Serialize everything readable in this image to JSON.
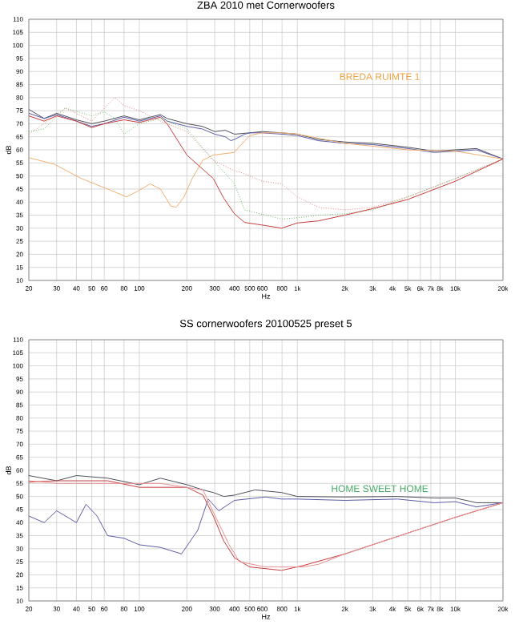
{
  "chart_data": [
    {
      "type": "line",
      "title": "ZBA 2010 met Cornerwoofers",
      "xlabel": "Hz",
      "ylabel": "dB",
      "log": "x",
      "grid": true,
      "marker": "none",
      "xlim": [
        20,
        20000
      ],
      "ylim": [
        10,
        110
      ],
      "xticks": [
        20,
        30,
        40,
        50,
        60,
        80,
        100,
        200,
        300,
        400,
        500,
        600,
        800,
        {
          "value": 1000,
          "label": "1k"
        },
        {
          "value": 2000,
          "label": "2k"
        },
        {
          "value": 3000,
          "label": "3k"
        },
        {
          "value": 4000,
          "label": "4k"
        },
        {
          "value": 5000,
          "label": "5k"
        },
        {
          "value": 6000,
          "label": "6k"
        },
        {
          "value": 7000,
          "label": "7k"
        },
        {
          "value": 8000,
          "label": "8k"
        },
        {
          "value": 10000,
          "label": "10k"
        },
        {
          "value": 20000,
          "label": "20k"
        }
      ],
      "yticks": [
        10,
        15,
        20,
        25,
        30,
        35,
        40,
        45,
        50,
        55,
        60,
        65,
        70,
        75,
        80,
        85,
        90,
        95,
        100,
        105,
        110
      ],
      "annotations": [
        "BREDA RUIMTE 1"
      ],
      "series": [
        {
          "color": "#4d4d5a",
          "line_style": "solid",
          "x": [
            20,
            25,
            30,
            40,
            50,
            60,
            80,
            100,
            136,
            150,
            200,
            250,
            300,
            350,
            400,
            500,
            600,
            800,
            1000,
            1360,
            2000,
            3000,
            5000,
            7350,
            10000,
            13600,
            20000
          ],
          "values": [
            75.5,
            72,
            74,
            71.5,
            70,
            71,
            73,
            71.5,
            73.5,
            72,
            70,
            69,
            67,
            67.5,
            66,
            66.5,
            67,
            66.5,
            66,
            64,
            63,
            62.5,
            61,
            59.5,
            60,
            60.5,
            56.5
          ]
        },
        {
          "color": "#5a5aa8",
          "line_style": "solid",
          "x": [
            20,
            25,
            30,
            40,
            50,
            60,
            80,
            100,
            136,
            150,
            200,
            250,
            300,
            350,
            380,
            400,
            431,
            464,
            500,
            600,
            800,
            1000,
            1360,
            2000,
            3000,
            5000,
            7350,
            10000,
            13600,
            20000
          ],
          "values": [
            74,
            72,
            73.5,
            71,
            69,
            70,
            72.5,
            71,
            73,
            71,
            69,
            68,
            66,
            65,
            63.5,
            64,
            65,
            66,
            66.5,
            66.5,
            66,
            65.5,
            63.5,
            62.5,
            62,
            60.5,
            59,
            59.5,
            60,
            56.5
          ]
        },
        {
          "color": "#f0b070",
          "line_style": "solid",
          "x": [
            20,
            29,
            43,
            63,
            83,
            100,
            117,
            136,
            158,
            171,
            192,
            216,
            252,
            293,
            398,
            500,
            600,
            800,
            1000,
            2000,
            5000,
            10000,
            20000
          ],
          "values": [
            57,
            54.5,
            49,
            45,
            42,
            44.5,
            47,
            45,
            38.5,
            38,
            42,
            49,
            56,
            58,
            59,
            65.5,
            66.5,
            66.5,
            66,
            62.5,
            60,
            59.5,
            56.5
          ]
        },
        {
          "color": "#66bb66",
          "line_style": "dotted",
          "x": [
            20,
            25,
            34,
            50,
            60,
            70,
            80,
            100,
            136,
            200,
            294,
            400,
            464,
            631,
            796,
            1000,
            1360,
            2000,
            3000,
            5000,
            10000,
            20000
          ],
          "values": [
            67,
            68,
            76,
            73,
            74.5,
            72,
            66,
            70,
            72,
            68,
            56,
            47,
            37,
            35,
            33.5,
            34,
            35,
            35.5,
            37,
            42,
            49,
            56.5
          ]
        },
        {
          "color": "#e08080",
          "line_style": "dotted",
          "x": [
            20,
            25,
            34,
            50,
            70,
            80,
            100,
            136,
            200,
            294,
            400,
            431,
            500,
            600,
            796,
            1000,
            1360,
            2000,
            3000,
            5000,
            10000,
            20000
          ],
          "values": [
            66,
            70,
            76,
            71,
            80,
            77,
            75,
            71,
            67,
            56,
            52,
            51.5,
            50,
            48,
            47,
            42,
            38,
            37,
            38,
            42,
            49,
            56.5
          ]
        },
        {
          "color": "#c83c3c",
          "line_style": "solid",
          "x": [
            20,
            25,
            30,
            40,
            50,
            60,
            80,
            100,
            136,
            150,
            200,
            294,
            342,
            400,
            464,
            631,
            796,
            1000,
            1360,
            2000,
            3000,
            5000,
            10000,
            20000
          ],
          "values": [
            73,
            71,
            73,
            71,
            68.5,
            70,
            71.5,
            70.5,
            72.5,
            70,
            58,
            49,
            41.5,
            35.5,
            32.2,
            31,
            30,
            32,
            32.8,
            35,
            37.5,
            41,
            48,
            56.5
          ]
        }
      ]
    },
    {
      "type": "line",
      "title": "SS cornerwoofers 20100525 preset 5",
      "xlabel": "Hz",
      "ylabel": "dB",
      "log": "x",
      "grid": true,
      "marker": "none",
      "xlim": [
        20,
        20000
      ],
      "ylim": [
        10,
        110
      ],
      "xticks": [
        20,
        30,
        40,
        50,
        60,
        80,
        100,
        200,
        300,
        400,
        500,
        600,
        800,
        {
          "value": 1000,
          "label": "1k"
        },
        {
          "value": 2000,
          "label": "2k"
        },
        {
          "value": 3000,
          "label": "3k"
        },
        {
          "value": 4000,
          "label": "4k"
        },
        {
          "value": 5000,
          "label": "5k"
        },
        {
          "value": 6000,
          "label": "6k"
        },
        {
          "value": 7000,
          "label": "7k"
        },
        {
          "value": 8000,
          "label": "8k"
        },
        {
          "value": 10000,
          "label": "10k"
        },
        {
          "value": 20000,
          "label": "20k"
        }
      ],
      "yticks": [
        10,
        15,
        20,
        25,
        30,
        35,
        40,
        45,
        50,
        55,
        60,
        65,
        70,
        75,
        80,
        85,
        90,
        95,
        100,
        105,
        110
      ],
      "annotations": [
        "HOME SWEET HOME"
      ],
      "series": [
        {
          "color": "#4d4d5a",
          "line_style": "solid",
          "x": [
            20,
            30,
            40,
            63,
            100,
            136,
            200,
            253,
            294,
            342,
            400,
            541,
            796,
            1000,
            2000,
            4300,
            7350,
            10000,
            13600,
            20000
          ],
          "values": [
            58,
            56,
            58,
            57,
            54.5,
            57,
            54.5,
            52.5,
            51.5,
            50,
            50.5,
            52.5,
            51.5,
            50,
            49.8,
            50,
            49.4,
            49.4,
            47.6,
            47.6
          ]
        },
        {
          "color": "#5a5aa8",
          "line_style": "solid",
          "x": [
            20,
            25,
            30,
            40,
            46,
            54,
            63,
            80,
            100,
            136,
            185,
            234,
            273,
            318,
            400,
            631,
            796,
            1000,
            2000,
            4300,
            7350,
            10000,
            13600,
            20000
          ],
          "values": [
            42.5,
            40,
            44.5,
            40,
            47,
            42.5,
            35,
            34,
            31.5,
            30.5,
            28,
            37,
            49,
            44.5,
            48.5,
            49.8,
            49,
            49,
            48.5,
            49,
            47.6,
            48,
            46,
            47.6
          ]
        },
        {
          "color": "#c83c3c",
          "line_style": "solid",
          "x": [
            20,
            30,
            63,
            100,
            200,
            253,
            294,
            342,
            400,
            500,
            796,
            1082,
            2000,
            5000,
            10000,
            20000
          ],
          "values": [
            55.5,
            56,
            56,
            53.5,
            53.5,
            50.5,
            42.5,
            33,
            26.5,
            23,
            21.7,
            23.5,
            28,
            36,
            42,
            47.6
          ]
        },
        {
          "color": "#e89090",
          "line_style": "solid",
          "x": [
            20,
            30,
            63,
            136,
            253,
            294,
            370,
            431,
            631,
            1082,
            1360,
            2000,
            5000,
            10000,
            20000
          ],
          "values": [
            56,
            55,
            55,
            55,
            52.5,
            44,
            31.5,
            25,
            23,
            23,
            24,
            28,
            36,
            42,
            47.6
          ]
        }
      ]
    }
  ]
}
